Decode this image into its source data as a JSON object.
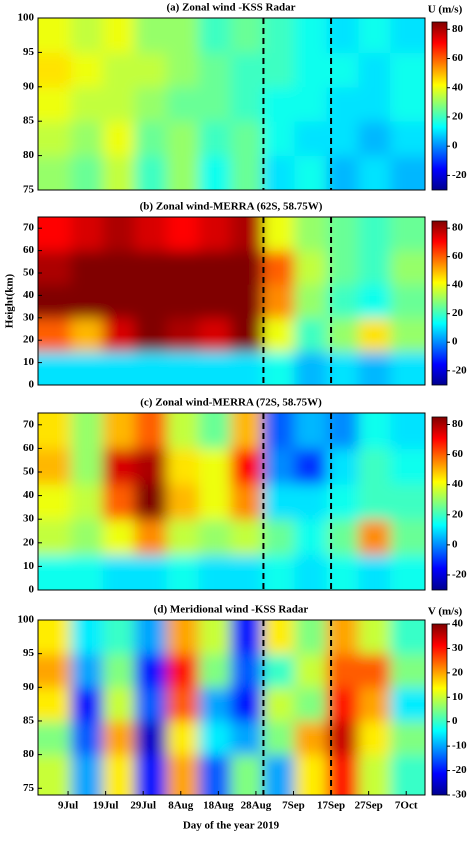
{
  "chart_data": [
    {
      "type": "heatmap",
      "title": "(a) Zonal wind -KSS Radar",
      "colorbar_label": "U (m/s)",
      "xlim": [
        182,
        285
      ],
      "ylim": [
        75,
        100
      ],
      "yticks": [
        75,
        80,
        85,
        90,
        95,
        100
      ],
      "clim": [
        -30,
        85
      ],
      "cticks": [
        80,
        60,
        40,
        20,
        0,
        -20
      ],
      "vlines": [
        242,
        260
      ],
      "x": [
        186.5,
        195,
        203.5,
        212,
        220.5,
        229,
        237.5,
        246,
        254.5,
        263,
        271.5,
        280
      ],
      "y": [
        77.5,
        82.5,
        87.5,
        92.5,
        97.5
      ],
      "z": [
        [
          30,
          25,
          35,
          20,
          30,
          15,
          25,
          10,
          15,
          5,
          10,
          5
        ],
        [
          35,
          30,
          40,
          25,
          30,
          20,
          25,
          15,
          10,
          10,
          5,
          10
        ],
        [
          40,
          35,
          35,
          30,
          25,
          25,
          20,
          15,
          15,
          10,
          10,
          15
        ],
        [
          45,
          40,
          35,
          35,
          30,
          25,
          20,
          20,
          15,
          15,
          10,
          15
        ],
        [
          40,
          35,
          40,
          30,
          30,
          20,
          25,
          20,
          15,
          10,
          15,
          10
        ]
      ]
    },
    {
      "type": "heatmap",
      "title": "(b) Zonal wind-MERRA (62S, 58.75W)",
      "ylabel": "Height(km)",
      "xlim": [
        182,
        285
      ],
      "ylim": [
        0,
        75
      ],
      "yticks": [
        0,
        10,
        20,
        30,
        40,
        50,
        60,
        70
      ],
      "clim": [
        -30,
        85
      ],
      "cticks": [
        80,
        60,
        40,
        20,
        0,
        -20
      ],
      "vlines": [
        242,
        260
      ],
      "x": [
        186.5,
        195,
        203.5,
        212,
        220.5,
        229,
        237.5,
        246,
        254.5,
        263,
        271.5,
        280
      ],
      "y": [
        7.5,
        22.5,
        37.5,
        52.5,
        67.5
      ],
      "z": [
        [
          10,
          10,
          10,
          10,
          10,
          10,
          10,
          15,
          5,
          10,
          5,
          10
        ],
        [
          60,
          50,
          75,
          85,
          80,
          75,
          85,
          40,
          20,
          30,
          45,
          30
        ],
        [
          85,
          85,
          85,
          85,
          85,
          85,
          85,
          55,
          30,
          20,
          15,
          25
        ],
        [
          80,
          85,
          85,
          85,
          85,
          85,
          85,
          60,
          35,
          25,
          20,
          30
        ],
        [
          70,
          75,
          80,
          75,
          70,
          75,
          80,
          40,
          30,
          25,
          20,
          25
        ]
      ]
    },
    {
      "type": "heatmap",
      "title": "(c) Zonal wind-MERRA (72S, 58.75W)",
      "xlim": [
        182,
        285
      ],
      "ylim": [
        0,
        75
      ],
      "yticks": [
        0,
        10,
        20,
        30,
        40,
        50,
        60,
        70
      ],
      "clim": [
        -30,
        85
      ],
      "cticks": [
        80,
        60,
        40,
        20,
        0,
        -20
      ],
      "vlines": [
        242,
        260
      ],
      "x": [
        186.5,
        195,
        203.5,
        212,
        220.5,
        229,
        237.5,
        246,
        254.5,
        263,
        271.5,
        280
      ],
      "y": [
        7.5,
        22.5,
        37.5,
        52.5,
        67.5
      ],
      "z": [
        [
          15,
          15,
          10,
          10,
          15,
          10,
          10,
          15,
          10,
          15,
          10,
          15
        ],
        [
          35,
          30,
          40,
          55,
          35,
          30,
          35,
          25,
          15,
          25,
          55,
          25
        ],
        [
          40,
          35,
          60,
          85,
          50,
          40,
          55,
          10,
          10,
          15,
          20,
          20
        ],
        [
          50,
          30,
          75,
          80,
          45,
          40,
          70,
          0,
          -10,
          10,
          20,
          15
        ],
        [
          45,
          30,
          50,
          60,
          35,
          25,
          50,
          -5,
          5,
          0,
          15,
          10
        ]
      ]
    },
    {
      "type": "heatmap",
      "title": "(d) Meridional wind -KSS Radar",
      "colorbar_label": "V (m/s)",
      "xlabel": "Day of the year 2019",
      "xlim": [
        182,
        285
      ],
      "ylim": [
        74,
        100
      ],
      "yticks": [
        75,
        80,
        85,
        90,
        95,
        100
      ],
      "xticks": [
        {
          "value": 190,
          "label": "9Jul"
        },
        {
          "value": 200,
          "label": "19Jul"
        },
        {
          "value": 210,
          "label": "29Jul"
        },
        {
          "value": 220,
          "label": "8Aug"
        },
        {
          "value": 230,
          "label": "18Aug"
        },
        {
          "value": 240,
          "label": "28Aug"
        },
        {
          "value": 250,
          "label": "7Sep"
        },
        {
          "value": 260,
          "label": "17Sep"
        },
        {
          "value": 270,
          "label": "27Sep"
        },
        {
          "value": 280,
          "label": "7Oct"
        }
      ],
      "clim": [
        -30,
        40
      ],
      "cticks": [
        40,
        30,
        20,
        10,
        0,
        -10,
        -20,
        -30
      ],
      "vlines": [
        242,
        260
      ],
      "x": [
        186.5,
        195,
        203.5,
        212,
        220.5,
        229,
        237.5,
        246,
        254.5,
        263,
        271.5,
        280
      ],
      "y": [
        77.5,
        82.5,
        87.5,
        92.5,
        97.5
      ],
      "z": [
        [
          10,
          -10,
          15,
          -20,
          20,
          -15,
          5,
          -10,
          15,
          30,
          10,
          0
        ],
        [
          5,
          -15,
          20,
          -25,
          15,
          -5,
          -10,
          5,
          20,
          35,
          15,
          5
        ],
        [
          15,
          -20,
          10,
          -15,
          25,
          -10,
          -20,
          10,
          5,
          30,
          20,
          -5
        ],
        [
          20,
          -10,
          5,
          -20,
          30,
          5,
          -15,
          0,
          10,
          25,
          25,
          5
        ],
        [
          15,
          -5,
          0,
          -10,
          20,
          10,
          -20,
          15,
          5,
          20,
          10,
          0
        ]
      ]
    }
  ]
}
